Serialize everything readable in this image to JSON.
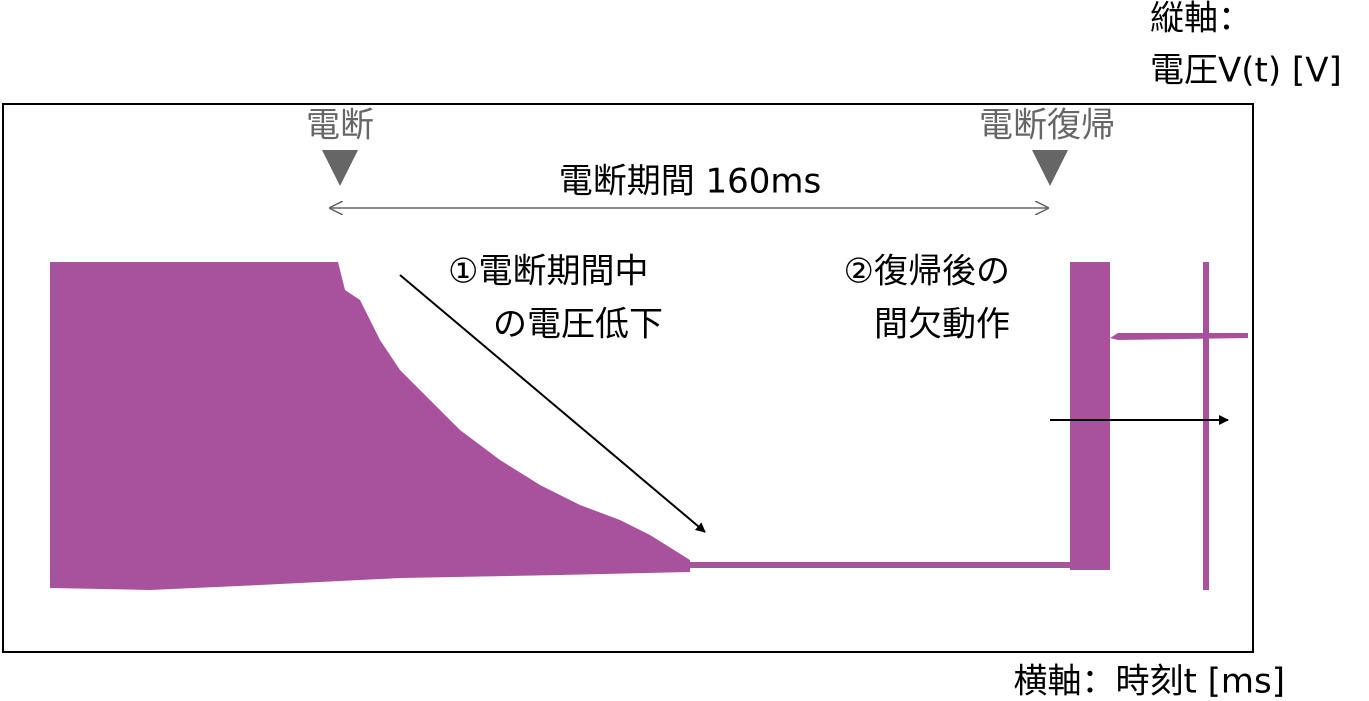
{
  "axis_labels": {
    "vertical": [
      "縦軸：",
      "電圧V(t) [V]"
    ],
    "horizontal": "横軸：時刻t [ms]"
  },
  "markers": {
    "cutoff": "電断",
    "recovery": "電断復帰"
  },
  "period_label": "電断期間 160ms",
  "notes": [
    {
      "lines": [
        "①電断期間中",
        "の電圧低下"
      ]
    },
    {
      "lines": [
        "②復帰後の",
        "間欠動作"
      ]
    }
  ]
}
